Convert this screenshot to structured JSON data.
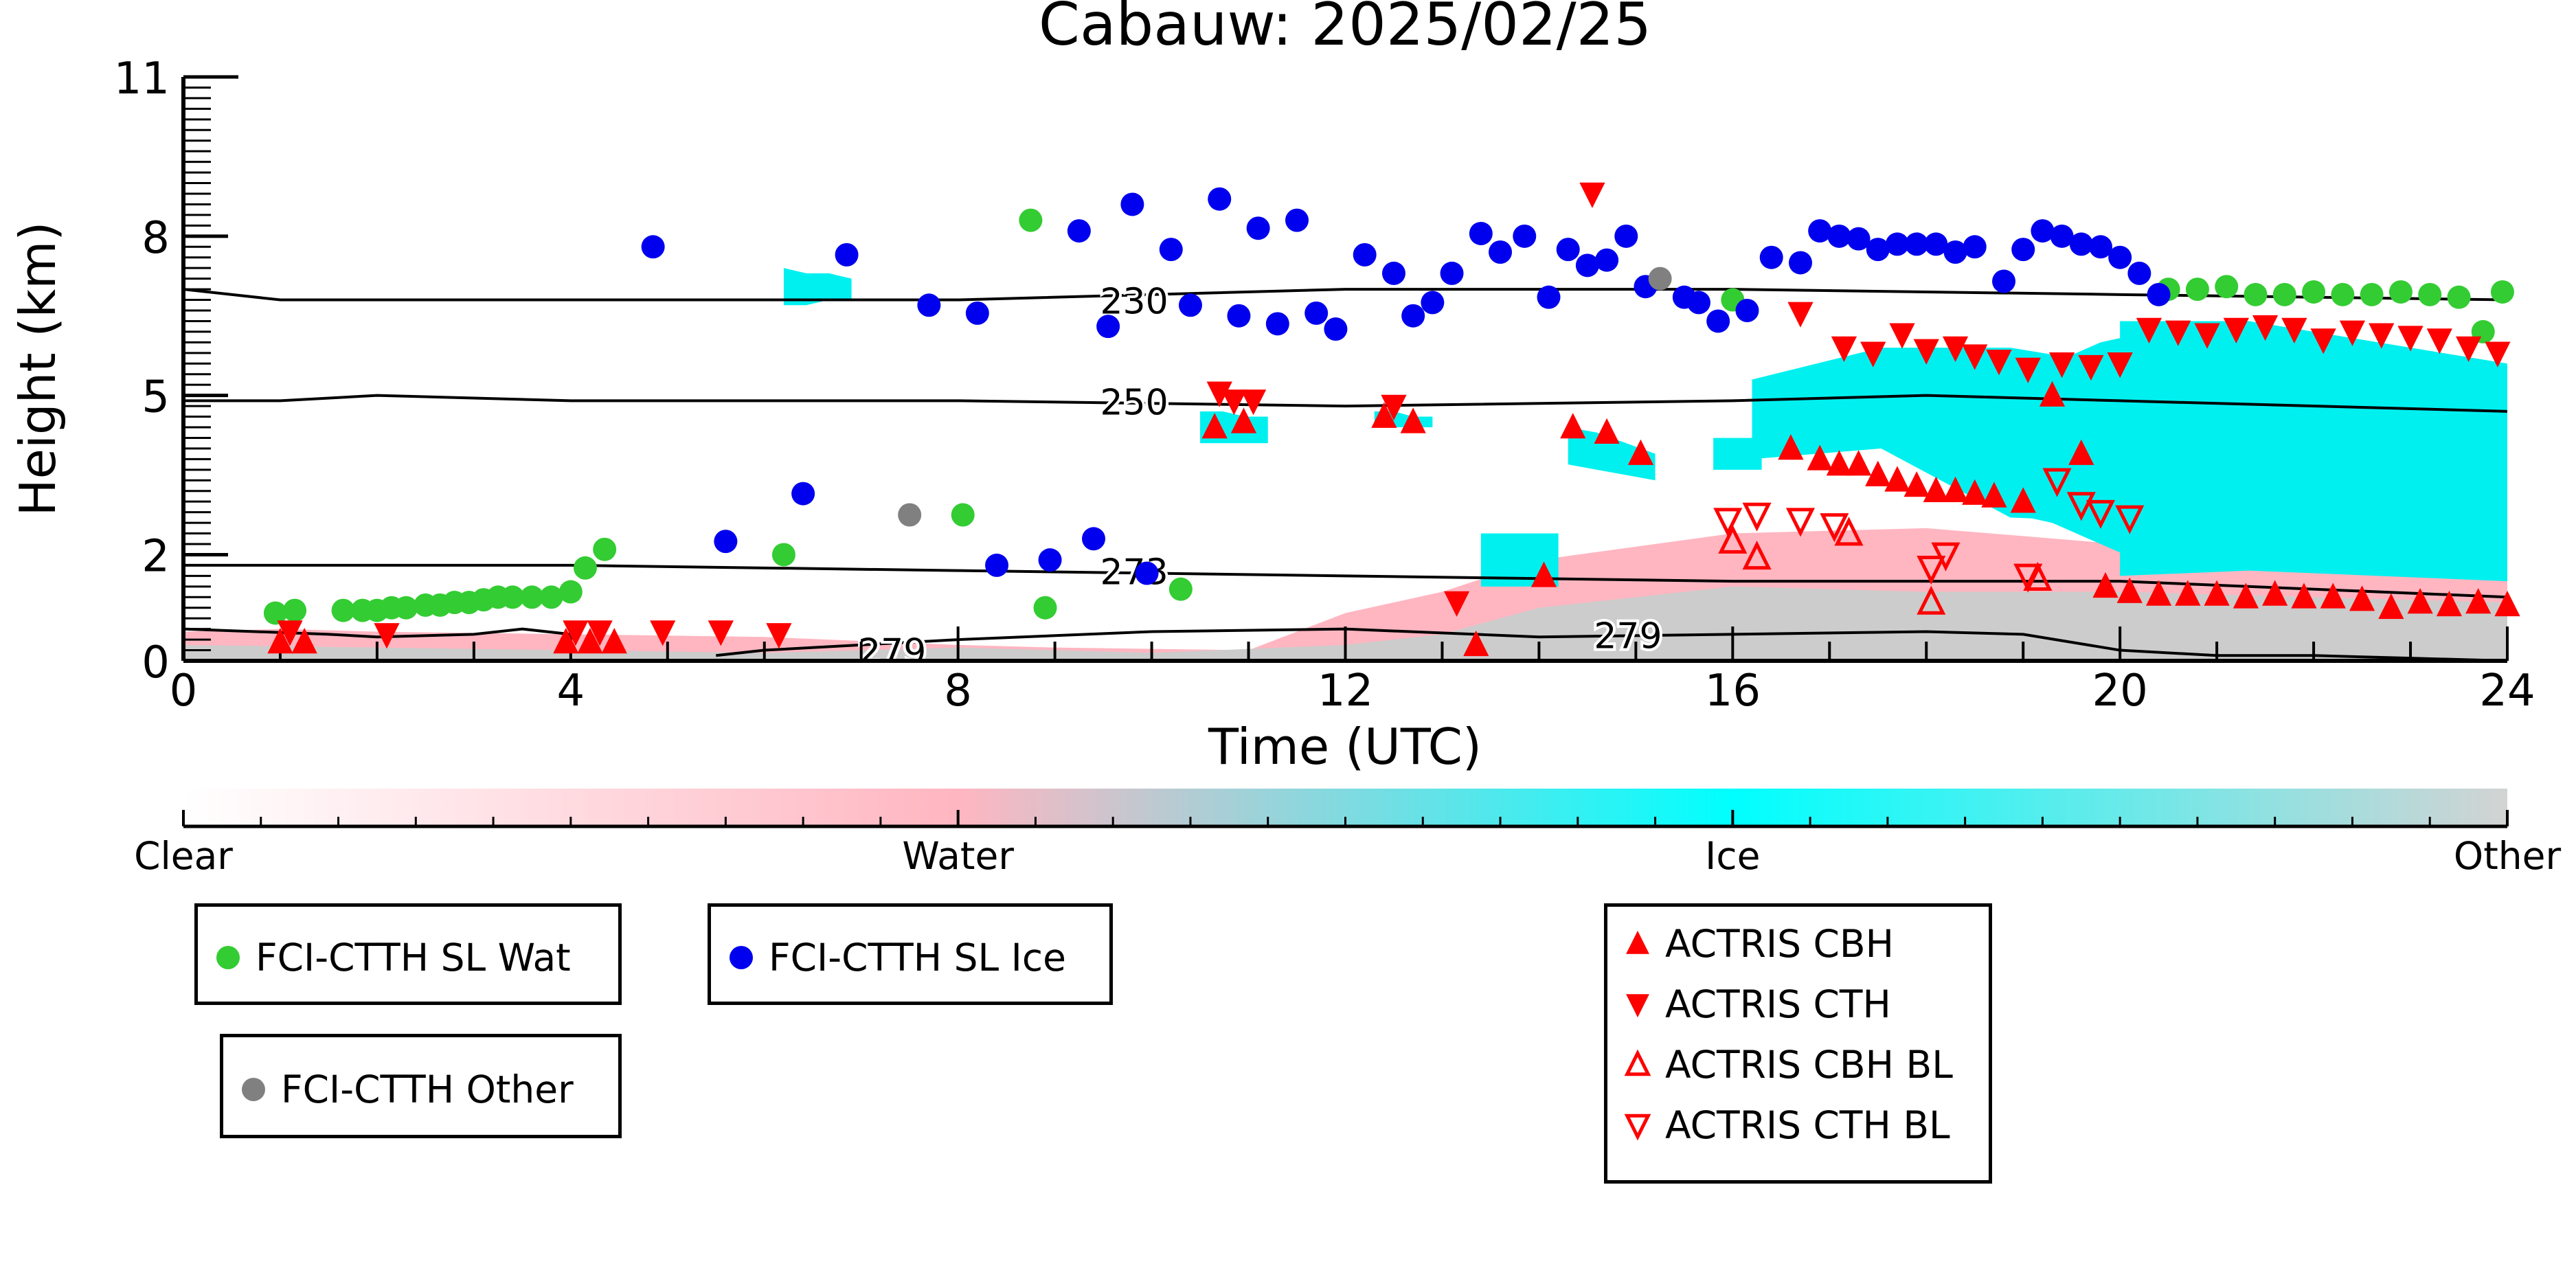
{
  "chart_data": {
    "type": "scatter",
    "title": "Cabauw: 2025/02/25",
    "xlabel": "Time (UTC)",
    "ylabel": "Height (km)",
    "xlim": [
      0,
      24
    ],
    "ylim": [
      0,
      11
    ],
    "x_ticks": [
      0,
      4,
      8,
      12,
      16,
      20,
      24
    ],
    "y_ticks": [
      0,
      2,
      5,
      8,
      11
    ],
    "colorbar": {
      "labels": [
        "Clear",
        "Water",
        "Ice",
        "Other"
      ],
      "colors": [
        "#ffffff",
        "#ffb6c1",
        "#00ffff",
        "#d3d3d3"
      ]
    },
    "background_classes": {
      "water_color": "#ffb6c1",
      "ice_color": "#00f0f0",
      "other_color": "#cccccc",
      "water_layer": [
        [
          0,
          0.55
        ],
        [
          1,
          0.6
        ],
        [
          2,
          0.55
        ],
        [
          4,
          0.5
        ],
        [
          6,
          0.45
        ],
        [
          8,
          0.3
        ],
        [
          9,
          0.25
        ],
        [
          11,
          0.2
        ],
        [
          12,
          0.9
        ],
        [
          13,
          1.3
        ],
        [
          14,
          1.9
        ],
        [
          16,
          2.4
        ],
        [
          18,
          2.5
        ],
        [
          20,
          2.2
        ],
        [
          22,
          2.1
        ],
        [
          24,
          2.0
        ]
      ],
      "other_layer": [
        [
          0,
          0.3
        ],
        [
          2,
          0.25
        ],
        [
          4,
          0.2
        ],
        [
          6,
          0.15
        ],
        [
          8,
          0.25
        ],
        [
          9,
          0.2
        ],
        [
          10,
          0.15
        ],
        [
          12,
          0.3
        ],
        [
          13,
          0.5
        ],
        [
          14,
          1.0
        ],
        [
          16,
          1.4
        ],
        [
          18,
          1.3
        ],
        [
          20,
          1.3
        ],
        [
          22,
          1.2
        ],
        [
          24,
          1.1
        ]
      ],
      "ice_regions": [
        {
          "x": [
            16.2,
            20.2
          ],
          "top": [
            5.3,
            5.9,
            5.9,
            5.5
          ],
          "bottom": [
            3.8,
            4.0,
            2.7,
            2.6
          ]
        },
        {
          "x": [
            20.0,
            24.0
          ],
          "top": [
            6.4,
            6.4,
            6.0,
            5.6
          ],
          "bottom": [
            1.6,
            1.7,
            1.6,
            1.5
          ]
        },
        {
          "x": [
            18.8,
            20.3
          ],
          "top": [
            5.0,
            5.6,
            6.0,
            6.2
          ],
          "bottom": [
            2.8,
            2.6,
            2.2,
            1.8
          ]
        },
        {
          "x": [
            13.4,
            14.2
          ],
          "top": [
            2.4,
            2.4,
            2.4,
            2.4
          ],
          "bottom": [
            1.4,
            1.4,
            1.4,
            1.4
          ]
        },
        {
          "x": [
            10.5,
            11.2
          ],
          "top": [
            4.7,
            4.7,
            4.6,
            4.6
          ],
          "bottom": [
            4.1,
            4.1,
            4.1,
            4.1
          ]
        },
        {
          "x": [
            14.3,
            15.2
          ],
          "top": [
            4.4,
            4.3,
            4.1,
            3.9
          ],
          "bottom": [
            3.7,
            3.6,
            3.5,
            3.4
          ]
        },
        {
          "x": [
            12.3,
            12.9
          ],
          "top": [
            4.7,
            4.7,
            4.6,
            4.6
          ],
          "bottom": [
            4.4,
            4.4,
            4.4,
            4.4
          ]
        },
        {
          "x": [
            6.2,
            6.9
          ],
          "top": [
            7.4,
            7.3,
            7.3,
            7.2
          ],
          "bottom": [
            6.7,
            6.7,
            6.8,
            6.8
          ]
        },
        {
          "x": [
            15.8,
            16.3
          ],
          "top": [
            4.2,
            4.2,
            4.2,
            4.2
          ],
          "bottom": [
            3.6,
            3.6,
            3.6,
            3.6
          ]
        }
      ]
    },
    "isotherms": [
      {
        "label": "230",
        "label_x": 9.5,
        "points": [
          [
            0,
            7.0
          ],
          [
            1,
            6.8
          ],
          [
            4,
            6.8
          ],
          [
            8,
            6.8
          ],
          [
            12,
            7.0
          ],
          [
            16,
            7.0
          ],
          [
            20,
            6.9
          ],
          [
            24,
            6.8
          ]
        ]
      },
      {
        "label": "250",
        "label_x": 9.5,
        "points": [
          [
            0,
            4.9
          ],
          [
            1,
            4.9
          ],
          [
            2,
            5.0
          ],
          [
            4,
            4.9
          ],
          [
            8,
            4.9
          ],
          [
            12,
            4.8
          ],
          [
            16,
            4.9
          ],
          [
            18,
            5.0
          ],
          [
            20,
            4.9
          ],
          [
            24,
            4.7
          ]
        ]
      },
      {
        "label": "273",
        "label_x": 9.5,
        "points": [
          [
            0,
            1.8
          ],
          [
            4,
            1.8
          ],
          [
            8,
            1.7
          ],
          [
            12,
            1.6
          ],
          [
            16,
            1.5
          ],
          [
            20,
            1.5
          ],
          [
            24,
            1.2
          ]
        ]
      },
      {
        "label": "279",
        "label_x": 7.0,
        "points": [
          [
            5.5,
            0.1
          ],
          [
            6,
            0.2
          ],
          [
            8,
            0.4
          ],
          [
            10,
            0.55
          ],
          [
            12,
            0.6
          ],
          [
            14,
            0.45
          ],
          [
            16,
            0.5
          ],
          [
            18,
            0.55
          ],
          [
            19,
            0.5
          ],
          [
            20,
            0.2
          ],
          [
            21,
            0.1
          ],
          [
            22,
            0.1
          ],
          [
            23,
            0.05
          ],
          [
            24,
            0.0
          ]
        ]
      },
      {
        "label": "279",
        "label_x": 14.6,
        "points": []
      },
      {
        "label": "",
        "label_x": 0,
        "points": [
          [
            0,
            0.6
          ],
          [
            1.5,
            0.5
          ],
          [
            2,
            0.45
          ],
          [
            3,
            0.5
          ],
          [
            3.5,
            0.6
          ],
          [
            4,
            0.5
          ]
        ]
      }
    ],
    "series": [
      {
        "name": "FCI-CTTH SL Wat",
        "marker": "circle",
        "color": "#33cc33",
        "x": [
          0.95,
          1.15,
          1.65,
          1.85,
          2.0,
          2.15,
          2.3,
          2.5,
          2.65,
          2.8,
          2.95,
          3.1,
          3.25,
          3.4,
          3.6,
          3.8,
          4.0,
          4.15,
          4.35,
          6.2,
          8.05,
          8.75,
          8.9,
          10.3,
          16.0,
          20.5,
          20.8,
          21.1,
          21.4,
          21.7,
          22.0,
          22.3,
          22.6,
          22.9,
          23.2,
          23.5,
          23.75,
          23.95
        ],
        "y": [
          0.9,
          0.95,
          0.95,
          0.95,
          0.95,
          1.0,
          1.0,
          1.05,
          1.05,
          1.1,
          1.1,
          1.15,
          1.2,
          1.2,
          1.2,
          1.2,
          1.3,
          1.75,
          2.1,
          2.0,
          2.75,
          8.3,
          1.0,
          1.35,
          6.8,
          7.0,
          7.0,
          7.05,
          6.9,
          6.9,
          6.95,
          6.9,
          6.9,
          6.95,
          6.9,
          6.85,
          6.2,
          6.95
        ]
      },
      {
        "name": "FCI-CTTH SL Ice",
        "marker": "circle",
        "color": "#0000ee",
        "x": [
          4.85,
          5.6,
          6.4,
          6.85,
          7.7,
          8.2,
          8.4,
          8.95,
          9.25,
          9.4,
          9.55,
          9.8,
          9.95,
          10.2,
          10.4,
          10.7,
          10.9,
          11.1,
          11.3,
          11.5,
          11.7,
          11.9,
          12.2,
          12.5,
          12.7,
          12.9,
          13.1,
          13.4,
          13.6,
          13.85,
          14.1,
          14.3,
          14.5,
          14.7,
          14.9,
          15.1,
          15.5,
          15.65,
          15.85,
          16.15,
          16.4,
          16.7,
          16.9,
          17.1,
          17.3,
          17.5,
          17.7,
          17.9,
          18.1,
          18.3,
          18.5,
          18.8,
          19.0,
          19.2,
          19.4,
          19.6,
          19.8,
          20.0,
          20.2,
          20.4
        ],
        "y": [
          7.8,
          2.25,
          3.15,
          7.65,
          6.7,
          6.55,
          1.8,
          1.9,
          8.1,
          2.3,
          6.3,
          8.6,
          1.65,
          7.75,
          6.7,
          8.7,
          6.5,
          8.15,
          6.35,
          8.3,
          6.55,
          6.25,
          7.65,
          7.3,
          6.5,
          6.75,
          7.3,
          8.05,
          7.7,
          8.0,
          6.85,
          7.75,
          7.45,
          7.55,
          8.0,
          7.05,
          6.85,
          6.75,
          6.4,
          6.6,
          7.6,
          7.5,
          8.1,
          8.0,
          7.95,
          7.75,
          7.85,
          7.85,
          7.85,
          7.7,
          7.8,
          7.15,
          7.75,
          8.1,
          8.0,
          7.85,
          7.8,
          7.6,
          7.3,
          6.9
        ]
      },
      {
        "name": "FCI-CTTH Other",
        "marker": "circle",
        "color": "#808080",
        "x": [
          7.5,
          15.25
        ],
        "y": [
          2.75,
          7.2
        ]
      },
      {
        "name": "ACTRIS CBH",
        "marker": "triangle-up",
        "color": "#ff0000",
        "x": [
          1.0,
          1.25,
          3.95,
          4.2,
          4.45,
          10.65,
          10.95,
          12.4,
          12.7,
          13.35,
          14.05,
          14.35,
          14.7,
          15.05,
          16.6,
          16.9,
          17.1,
          17.3,
          17.5,
          17.7,
          17.9,
          18.1,
          18.3,
          18.5,
          18.7,
          19.0,
          19.3,
          19.6,
          19.85,
          20.1,
          20.4,
          20.7,
          21.0,
          21.3,
          21.6,
          21.9,
          22.2,
          22.5,
          22.8,
          23.1,
          23.4,
          23.7,
          24.0
        ],
        "y": [
          0.35,
          0.35,
          0.35,
          0.35,
          0.35,
          4.4,
          4.5,
          4.6,
          4.5,
          0.3,
          1.6,
          4.4,
          4.3,
          3.9,
          4.0,
          3.8,
          3.7,
          3.7,
          3.5,
          3.4,
          3.3,
          3.2,
          3.2,
          3.15,
          3.1,
          3.0,
          5.0,
          3.9,
          1.4,
          1.3,
          1.25,
          1.25,
          1.25,
          1.2,
          1.25,
          1.2,
          1.2,
          1.15,
          1.0,
          1.1,
          1.05,
          1.1,
          1.05
        ]
      },
      {
        "name": "ACTRIS CTH",
        "marker": "triangle-down",
        "color": "#ff0000",
        "x": [
          1.1,
          2.1,
          4.05,
          4.3,
          4.95,
          5.55,
          6.15,
          10.7,
          10.85,
          11.05,
          12.5,
          13.15,
          14.55,
          16.7,
          17.15,
          17.45,
          17.75,
          18.0,
          18.3,
          18.5,
          18.75,
          19.05,
          19.4,
          19.7,
          20.0,
          20.3,
          20.6,
          20.9,
          21.2,
          21.5,
          21.8,
          22.1,
          22.4,
          22.7,
          23.0,
          23.3,
          23.6,
          23.9
        ],
        "y": [
          0.55,
          0.5,
          0.55,
          0.55,
          0.55,
          0.55,
          0.5,
          5.05,
          4.9,
          4.9,
          4.8,
          1.1,
          8.8,
          6.55,
          5.9,
          5.8,
          6.15,
          5.85,
          5.9,
          5.75,
          5.65,
          5.5,
          5.6,
          5.55,
          5.6,
          6.25,
          6.2,
          6.15,
          6.25,
          6.3,
          6.25,
          6.05,
          6.2,
          6.15,
          6.1,
          6.05,
          5.9,
          5.8
        ]
      },
      {
        "name": "ACTRIS CBH BL",
        "marker": "triangle-up-open",
        "color": "#ff0000",
        "x": [
          16.0,
          16.25,
          17.2,
          18.05,
          19.15
        ],
        "y": [
          2.25,
          1.95,
          2.4,
          1.1,
          1.55
        ]
      },
      {
        "name": "ACTRIS CTH BL",
        "marker": "triangle-down-open",
        "color": "#ff0000",
        "x": [
          15.95,
          16.25,
          16.7,
          17.05,
          18.05,
          18.2,
          19.05,
          19.35,
          19.6,
          19.8,
          20.1
        ],
        "y": [
          2.65,
          2.75,
          2.65,
          2.55,
          1.75,
          2.0,
          1.6,
          3.4,
          2.95,
          2.8,
          2.7
        ]
      }
    ]
  },
  "legends": [
    {
      "items": [
        {
          "label": "FCI-CTTH SL Wat",
          "marker": "circle",
          "color": "#33cc33"
        }
      ]
    },
    {
      "items": [
        {
          "label": "FCI-CTTH SL Ice",
          "marker": "circle",
          "color": "#0000ee"
        }
      ]
    },
    {
      "items": [
        {
          "label": "FCI-CTTH Other",
          "marker": "circle",
          "color": "#808080"
        }
      ]
    },
    {
      "items": [
        {
          "label": "ACTRIS CBH",
          "marker": "triangle-up",
          "color": "#ff0000"
        },
        {
          "label": "ACTRIS CTH",
          "marker": "triangle-down",
          "color": "#ff0000"
        },
        {
          "label": "ACTRIS CBH BL",
          "marker": "triangle-up-open",
          "color": "#ff0000"
        },
        {
          "label": "ACTRIS CTH BL",
          "marker": "triangle-down-open",
          "color": "#ff0000"
        }
      ]
    }
  ]
}
